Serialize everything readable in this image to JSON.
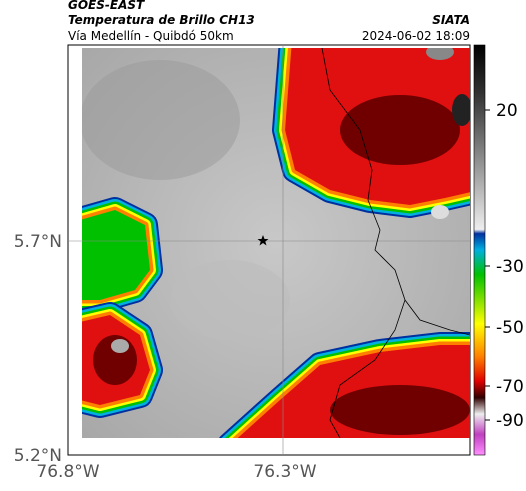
{
  "header": {
    "satellite": "GOES-EAST",
    "product": "Temperatura de Brillo CH13",
    "route": "Vía Medellín - Quibdó 50km",
    "agency": "SIATA",
    "timestamp": "2024-06-02 18:09"
  },
  "axes": {
    "y_labels": [
      "5.7°N",
      "5.2°N"
    ],
    "x_labels": [
      "76.8°W",
      "76.3°W"
    ]
  },
  "colorbar": {
    "ticks": [
      20,
      -30,
      -50,
      -70,
      -90
    ]
  }
}
